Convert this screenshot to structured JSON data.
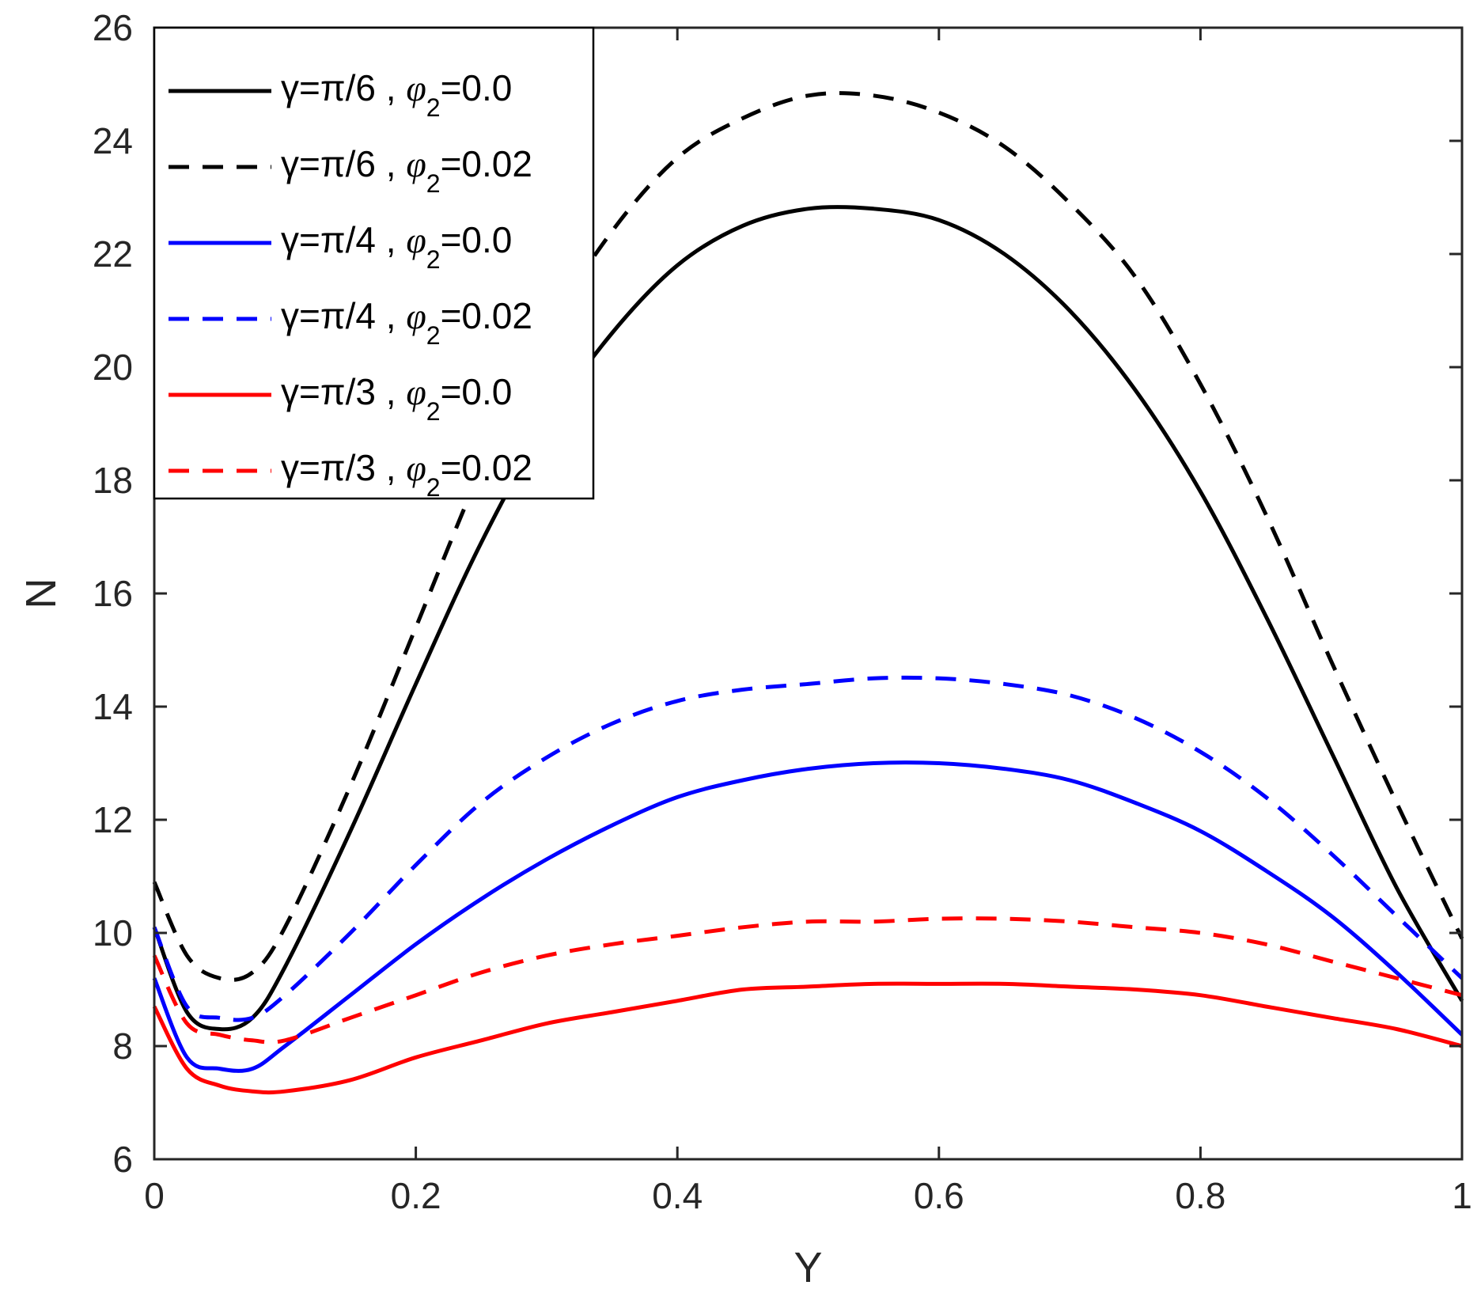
{
  "chart_data": {
    "type": "line",
    "title": "",
    "xlabel": "Y",
    "ylabel": "N",
    "xlim": [
      0,
      1
    ],
    "ylim": [
      6,
      26
    ],
    "xticks": [
      0,
      0.2,
      0.4,
      0.6,
      0.8,
      1
    ],
    "xtick_labels": [
      "0",
      "0.2",
      "0.4",
      "0.6",
      "0.8",
      "1"
    ],
    "yticks": [
      6,
      8,
      10,
      12,
      14,
      16,
      18,
      20,
      22,
      24,
      26
    ],
    "ytick_labels": [
      "6",
      "8",
      "10",
      "12",
      "14",
      "16",
      "18",
      "20",
      "22",
      "24",
      "26"
    ],
    "grid": false,
    "legend_position": "top-left",
    "x": [
      0,
      0.025,
      0.05,
      0.075,
      0.1,
      0.15,
      0.2,
      0.25,
      0.3,
      0.35,
      0.4,
      0.45,
      0.5,
      0.55,
      0.6,
      0.65,
      0.7,
      0.75,
      0.8,
      0.85,
      0.9,
      0.95,
      1.0
    ],
    "series": [
      {
        "name": "γ=π/6 , φ2=0.0",
        "gamma": "γ=π/6",
        "phi_symbol": "φ",
        "phi_sub": "2",
        "phi_value": "=0.0",
        "color": "#000000",
        "dash": "solid",
        "values": [
          10.1,
          8.6,
          8.3,
          8.5,
          9.4,
          11.8,
          14.4,
          16.9,
          19.0,
          20.6,
          21.8,
          22.5,
          22.8,
          22.8,
          22.6,
          22.0,
          21.0,
          19.6,
          17.8,
          15.6,
          13.2,
          10.8,
          8.8
        ]
      },
      {
        "name": "γ=π/6 , φ2=0.02",
        "gamma": "γ=π/6",
        "phi_symbol": "φ",
        "phi_sub": "2",
        "phi_value": "=0.02",
        "color": "#000000",
        "dash": "dashed",
        "values": [
          10.9,
          9.6,
          9.2,
          9.3,
          10.1,
          12.6,
          15.4,
          18.2,
          20.6,
          22.4,
          23.7,
          24.4,
          24.8,
          24.8,
          24.5,
          23.9,
          22.9,
          21.6,
          19.7,
          17.4,
          14.8,
          12.3,
          9.9
        ]
      },
      {
        "name": "γ=π/4 , φ2=0.0",
        "gamma": "γ=π/4",
        "phi_symbol": "φ",
        "phi_sub": "2",
        "phi_value": "=0.0",
        "color": "#0000ff",
        "dash": "solid",
        "values": [
          9.2,
          7.8,
          7.6,
          7.6,
          8.0,
          8.9,
          9.8,
          10.6,
          11.3,
          11.9,
          12.4,
          12.7,
          12.9,
          13.0,
          13.0,
          12.9,
          12.7,
          12.3,
          11.8,
          11.1,
          10.3,
          9.3,
          8.2
        ]
      },
      {
        "name": "γ=π/4 , φ2=0.02",
        "gamma": "γ=π/4",
        "phi_symbol": "φ",
        "phi_sub": "2",
        "phi_value": "=0.02",
        "color": "#0000ff",
        "dash": "dashed",
        "values": [
          10.1,
          8.7,
          8.5,
          8.5,
          8.9,
          10.0,
          11.2,
          12.3,
          13.1,
          13.7,
          14.1,
          14.3,
          14.4,
          14.5,
          14.5,
          14.4,
          14.2,
          13.8,
          13.2,
          12.4,
          11.4,
          10.3,
          9.2
        ]
      },
      {
        "name": "γ=π/3 , φ2=0.0",
        "gamma": "γ=π/3",
        "phi_symbol": "φ",
        "phi_sub": "2",
        "phi_value": "=0.0",
        "color": "#ff0000",
        "dash": "solid",
        "values": [
          8.7,
          7.6,
          7.3,
          7.2,
          7.2,
          7.4,
          7.8,
          8.1,
          8.4,
          8.6,
          8.8,
          9.0,
          9.05,
          9.1,
          9.1,
          9.1,
          9.05,
          9.0,
          8.9,
          8.7,
          8.5,
          8.3,
          8.0
        ]
      },
      {
        "name": "γ=π/3 , φ2=0.02",
        "gamma": "γ=π/3",
        "phi_symbol": "φ",
        "phi_sub": "2",
        "phi_value": "=0.02",
        "color": "#ff0000",
        "dash": "dashed",
        "values": [
          9.6,
          8.4,
          8.2,
          8.1,
          8.1,
          8.5,
          8.9,
          9.3,
          9.6,
          9.8,
          9.95,
          10.1,
          10.2,
          10.2,
          10.25,
          10.25,
          10.2,
          10.1,
          10.0,
          9.8,
          9.5,
          9.2,
          8.9
        ]
      }
    ]
  }
}
